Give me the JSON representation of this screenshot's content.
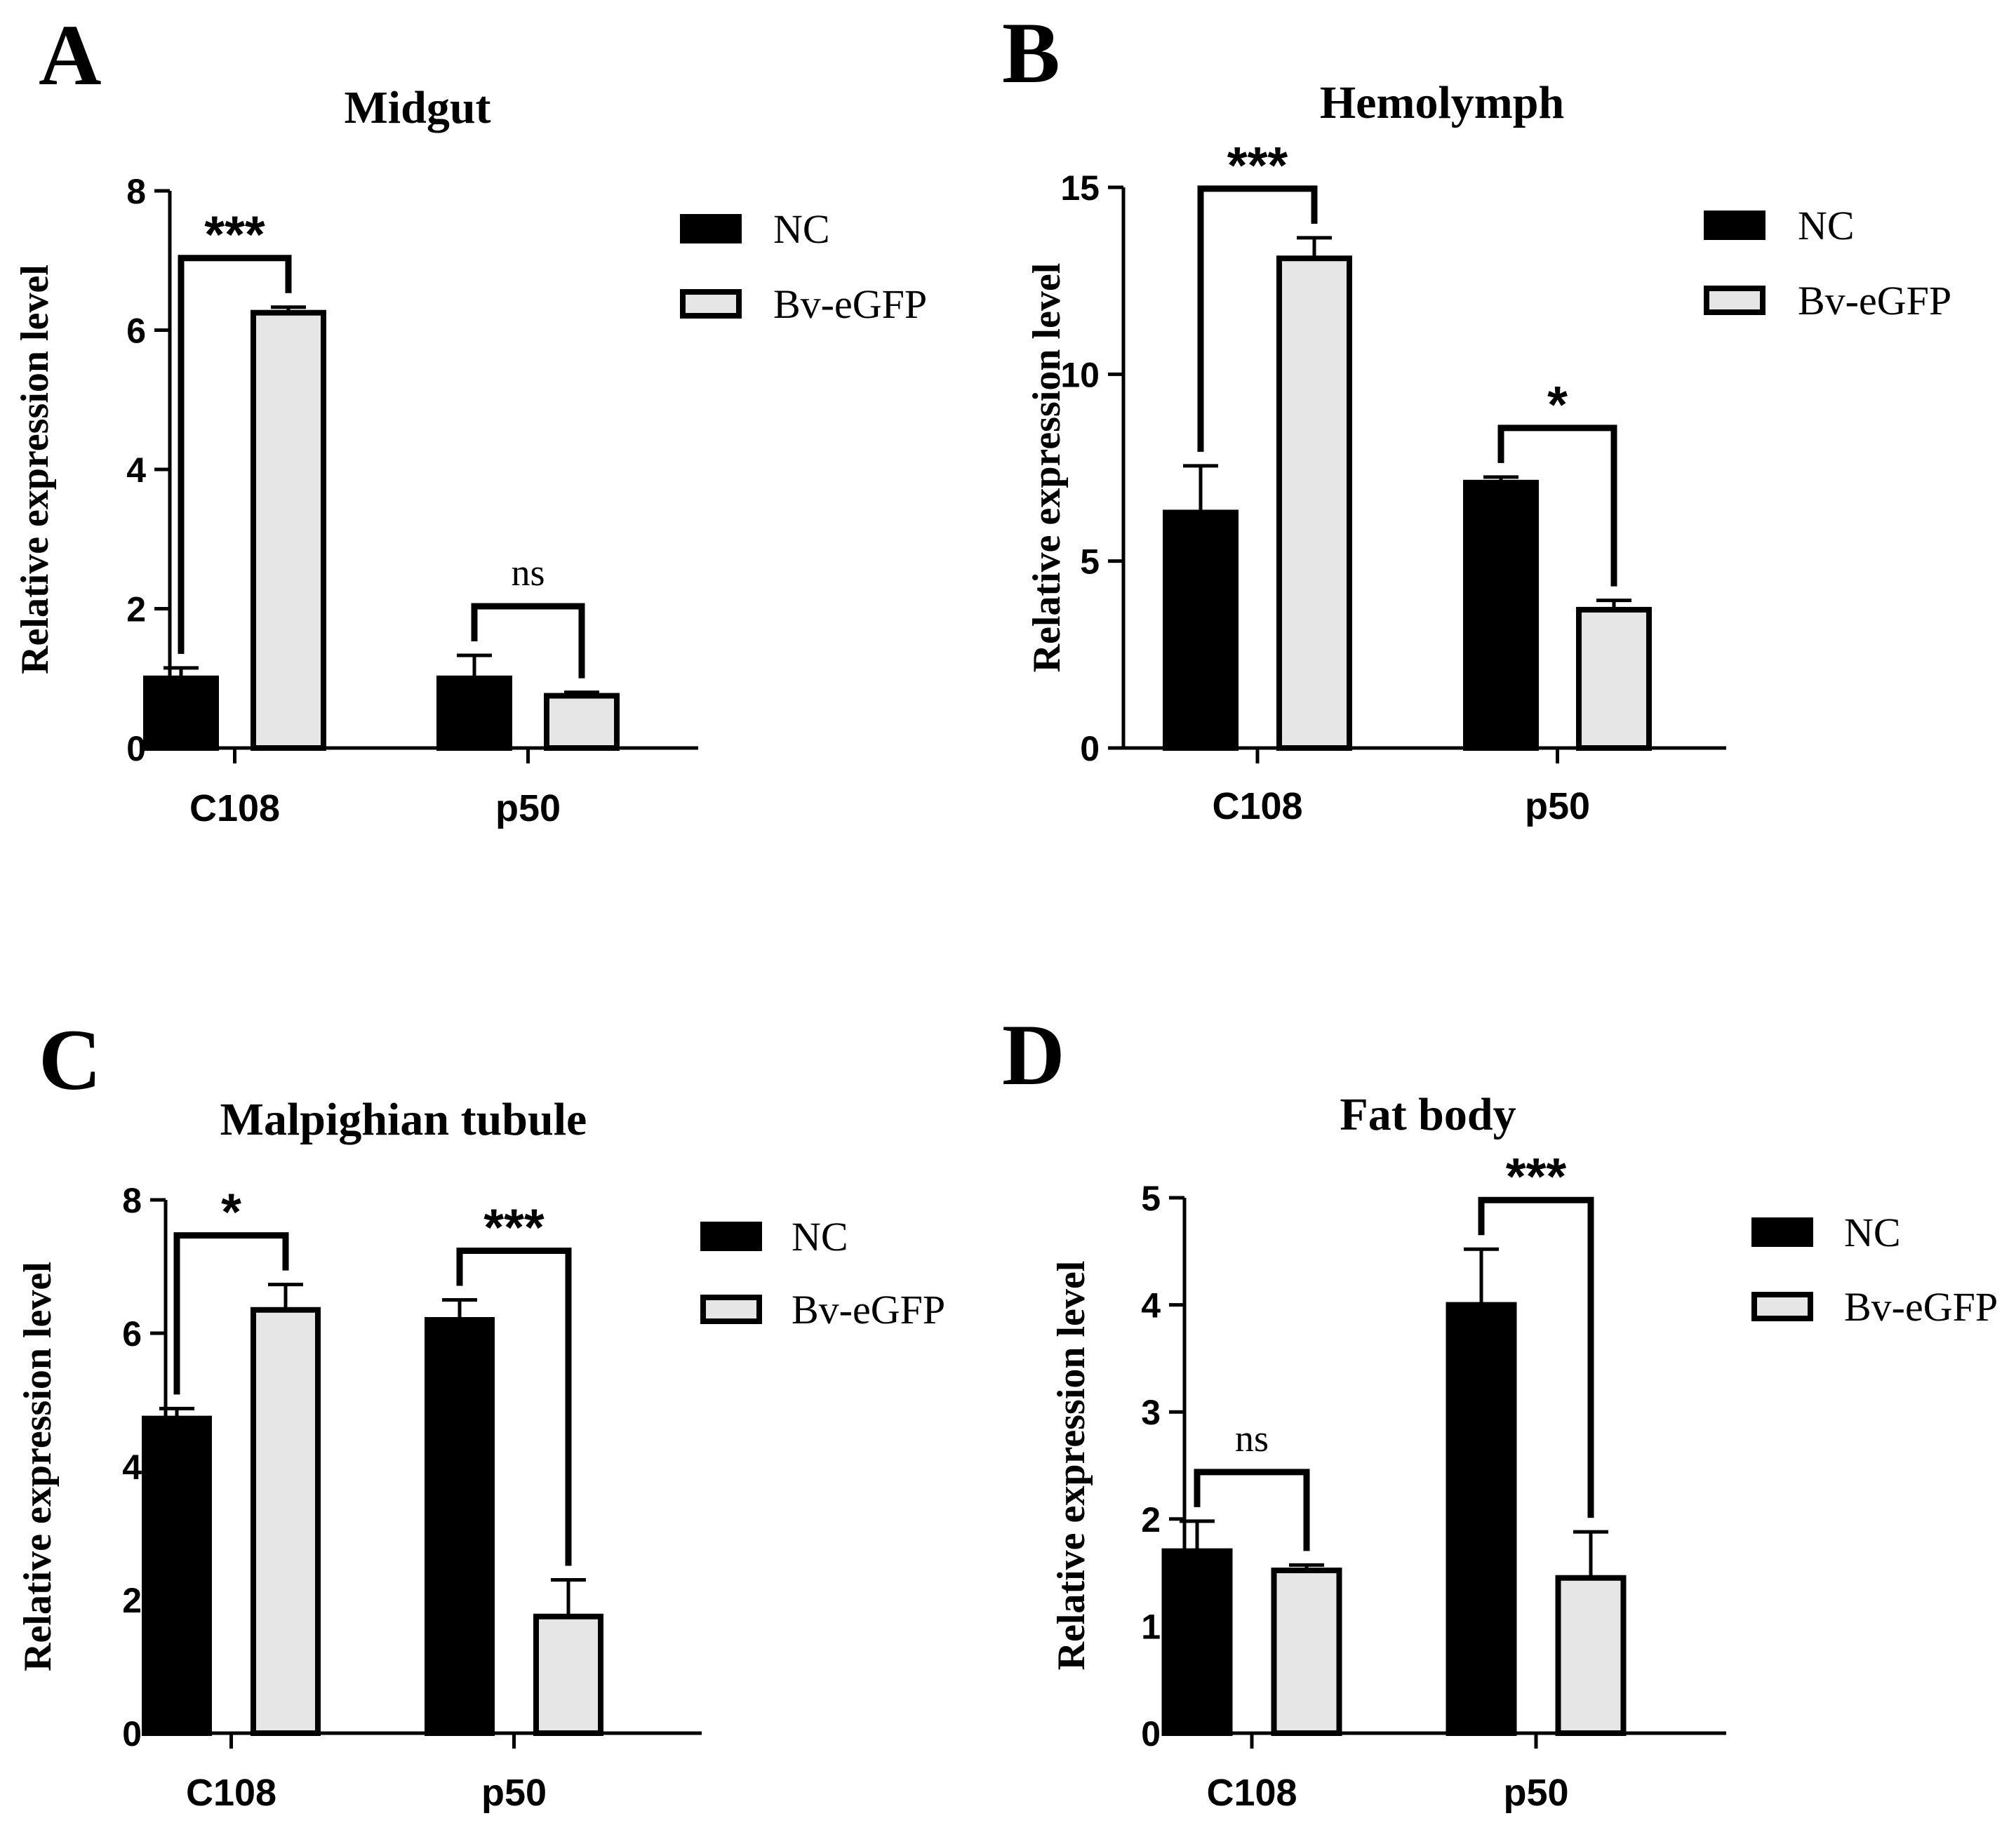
{
  "panels": [
    {
      "letter": "A",
      "title": "Midgut"
    },
    {
      "letter": "B",
      "title": "Hemolymph"
    },
    {
      "letter": "C",
      "title": "Malpighian tubule"
    },
    {
      "letter": "D",
      "title": "Fat body"
    }
  ],
  "legend": [
    "NC",
    "Bv-eGFP"
  ],
  "colors": {
    "nc": "#000000",
    "bv": "#e6e6e6",
    "stroke": "#000000"
  },
  "chart_data": [
    {
      "type": "bar",
      "title": "Midgut",
      "xlabel": "",
      "ylabel": "Relative expression level",
      "categories": [
        "C108",
        "p50"
      ],
      "ylim": [
        0,
        8
      ],
      "yticks": [
        0,
        2,
        4,
        6,
        8
      ],
      "series": [
        {
          "name": "NC",
          "values": [
            1.0,
            1.0
          ],
          "errors": [
            0.15,
            0.33
          ]
        },
        {
          "name": "Bv-eGFP",
          "values": [
            6.25,
            0.75
          ],
          "errors": [
            0.08,
            0.05
          ]
        }
      ],
      "significance": [
        {
          "category": "C108",
          "label": "***"
        },
        {
          "category": "p50",
          "label": "ns"
        }
      ]
    },
    {
      "type": "bar",
      "title": "Hemolymph",
      "xlabel": "",
      "ylabel": "Relative expression level",
      "categories": [
        "C108",
        "p50"
      ],
      "ylim": [
        0,
        15
      ],
      "yticks": [
        0,
        5,
        10,
        15
      ],
      "series": [
        {
          "name": "NC",
          "values": [
            6.3,
            7.1
          ],
          "errors": [
            1.25,
            0.15
          ]
        },
        {
          "name": "Bv-eGFP",
          "values": [
            13.1,
            3.7
          ],
          "errors": [
            0.55,
            0.25
          ]
        }
      ],
      "significance": [
        {
          "category": "C108",
          "label": "***"
        },
        {
          "category": "p50",
          "label": "*"
        }
      ]
    },
    {
      "type": "bar",
      "title": "Malpighian tubule",
      "xlabel": "",
      "ylabel": "Relative expression level",
      "categories": [
        "C108",
        "p50"
      ],
      "ylim": [
        0,
        8
      ],
      "yticks": [
        0,
        2,
        4,
        6,
        8
      ],
      "series": [
        {
          "name": "NC",
          "values": [
            4.72,
            6.2
          ],
          "errors": [
            0.15,
            0.3
          ]
        },
        {
          "name": "Bv-eGFP",
          "values": [
            6.35,
            1.75
          ],
          "errors": [
            0.38,
            0.55
          ]
        }
      ],
      "significance": [
        {
          "category": "C108",
          "label": "*"
        },
        {
          "category": "p50",
          "label": "***"
        }
      ]
    },
    {
      "type": "bar",
      "title": "Fat body",
      "xlabel": "",
      "ylabel": "Relative expression level",
      "categories": [
        "C108",
        "p50"
      ],
      "ylim": [
        0,
        5
      ],
      "yticks": [
        0,
        1,
        2,
        3,
        4,
        5
      ],
      "series": [
        {
          "name": "NC",
          "values": [
            1.7,
            4.0
          ],
          "errors": [
            0.28,
            0.52
          ]
        },
        {
          "name": "Bv-eGFP",
          "values": [
            1.52,
            1.45
          ],
          "errors": [
            0.05,
            0.43
          ]
        }
      ],
      "significance": [
        {
          "category": "C108",
          "label": "ns"
        },
        {
          "category": "p50",
          "label": "***"
        }
      ]
    }
  ]
}
